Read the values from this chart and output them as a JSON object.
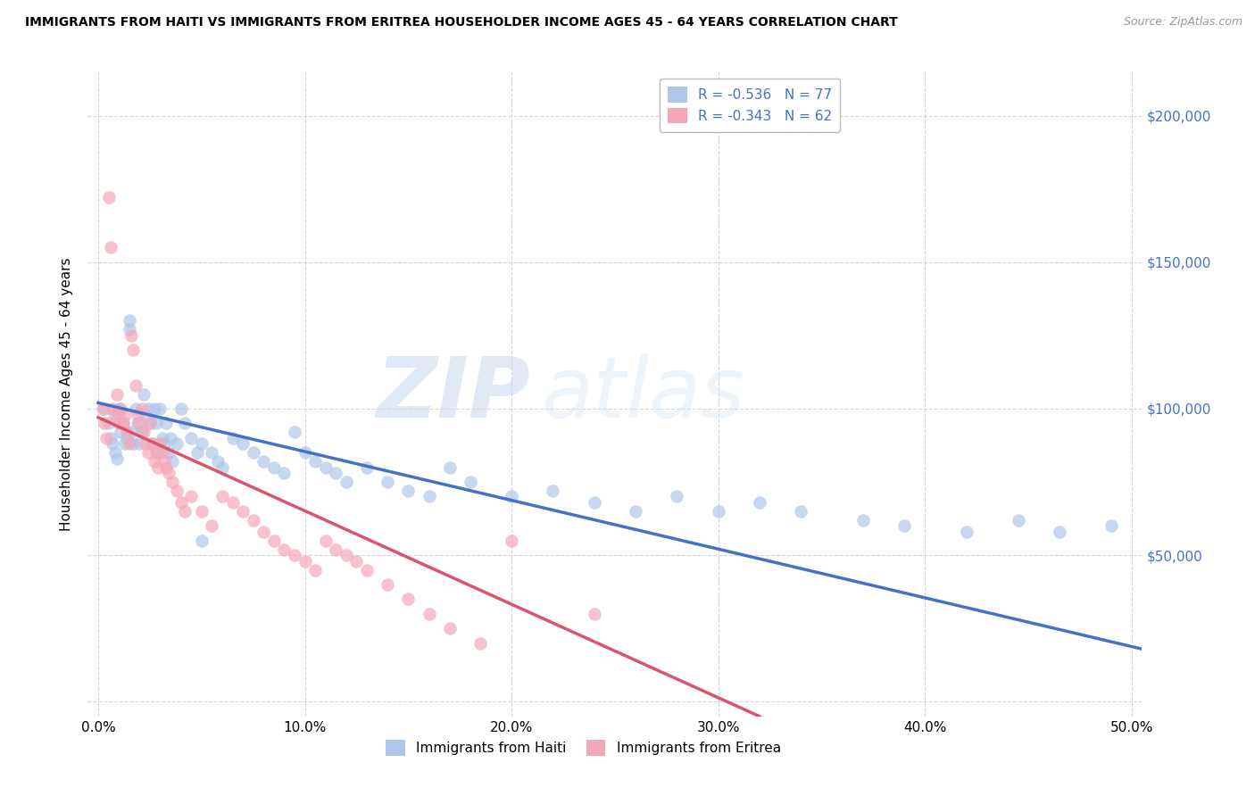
{
  "title": "IMMIGRANTS FROM HAITI VS IMMIGRANTS FROM ERITREA HOUSEHOLDER INCOME AGES 45 - 64 YEARS CORRELATION CHART",
  "source": "Source: ZipAtlas.com",
  "ylabel": "Householder Income Ages 45 - 64 years",
  "xlim": [
    -0.005,
    0.505
  ],
  "ylim": [
    -5000,
    215000
  ],
  "xtick_labels": [
    "0.0%",
    "10.0%",
    "20.0%",
    "30.0%",
    "40.0%",
    "50.0%"
  ],
  "xtick_vals": [
    0.0,
    0.1,
    0.2,
    0.3,
    0.4,
    0.5
  ],
  "ytick_vals": [
    0,
    50000,
    100000,
    150000,
    200000
  ],
  "ytick_labels_right": [
    "",
    "$50,000",
    "$100,000",
    "$150,000",
    "$200,000"
  ],
  "haiti_color": "#aec6e8",
  "eritrea_color": "#f4a7b9",
  "haiti_line_color": "#4472c4",
  "eritrea_line_color": "#d9546e",
  "haiti_R": -0.536,
  "haiti_N": 77,
  "eritrea_R": -0.343,
  "eritrea_N": 62,
  "legend_label_haiti": "Immigrants from Haiti",
  "legend_label_eritrea": "Immigrants from Eritrea",
  "watermark_zip": "ZIP",
  "watermark_atlas": "atlas",
  "grid_color": "#cccccc",
  "haiti_line_x0": 0.0,
  "haiti_line_y0": 102000,
  "haiti_line_x1": 0.505,
  "haiti_line_y1": 18000,
  "eritrea_line_x0": 0.0,
  "eritrea_line_y0": 97000,
  "eritrea_line_x1": 0.32,
  "eritrea_line_y1": -5000,
  "haiti_x": [
    0.003,
    0.005,
    0.006,
    0.007,
    0.008,
    0.009,
    0.01,
    0.01,
    0.011,
    0.012,
    0.013,
    0.014,
    0.015,
    0.015,
    0.016,
    0.017,
    0.018,
    0.019,
    0.02,
    0.021,
    0.022,
    0.023,
    0.024,
    0.025,
    0.026,
    0.027,
    0.028,
    0.029,
    0.03,
    0.031,
    0.032,
    0.033,
    0.034,
    0.035,
    0.036,
    0.038,
    0.04,
    0.042,
    0.045,
    0.048,
    0.05,
    0.055,
    0.058,
    0.06,
    0.065,
    0.07,
    0.075,
    0.08,
    0.085,
    0.09,
    0.095,
    0.1,
    0.105,
    0.11,
    0.115,
    0.12,
    0.13,
    0.14,
    0.15,
    0.16,
    0.17,
    0.18,
    0.2,
    0.22,
    0.24,
    0.26,
    0.28,
    0.3,
    0.32,
    0.34,
    0.37,
    0.39,
    0.42,
    0.445,
    0.465,
    0.49,
    0.05
  ],
  "haiti_y": [
    100000,
    95000,
    90000,
    88000,
    85000,
    83000,
    98000,
    100000,
    92000,
    95000,
    88000,
    90000,
    130000,
    127000,
    92000,
    88000,
    100000,
    95000,
    88000,
    92000,
    105000,
    98000,
    100000,
    95000,
    88000,
    100000,
    95000,
    85000,
    100000,
    90000,
    88000,
    95000,
    85000,
    90000,
    82000,
    88000,
    100000,
    95000,
    90000,
    85000,
    88000,
    85000,
    82000,
    80000,
    90000,
    88000,
    85000,
    82000,
    80000,
    78000,
    92000,
    85000,
    82000,
    80000,
    78000,
    75000,
    80000,
    75000,
    72000,
    70000,
    80000,
    75000,
    70000,
    72000,
    68000,
    65000,
    70000,
    65000,
    68000,
    65000,
    62000,
    60000,
    58000,
    62000,
    58000,
    60000,
    55000
  ],
  "eritrea_x": [
    0.002,
    0.003,
    0.004,
    0.005,
    0.006,
    0.007,
    0.008,
    0.009,
    0.01,
    0.011,
    0.012,
    0.013,
    0.014,
    0.015,
    0.016,
    0.017,
    0.018,
    0.019,
    0.02,
    0.021,
    0.022,
    0.023,
    0.024,
    0.025,
    0.026,
    0.027,
    0.028,
    0.029,
    0.03,
    0.031,
    0.032,
    0.033,
    0.034,
    0.036,
    0.038,
    0.04,
    0.042,
    0.045,
    0.05,
    0.055,
    0.06,
    0.065,
    0.07,
    0.075,
    0.08,
    0.085,
    0.09,
    0.095,
    0.1,
    0.105,
    0.11,
    0.115,
    0.12,
    0.125,
    0.13,
    0.14,
    0.15,
    0.16,
    0.17,
    0.185,
    0.2,
    0.24
  ],
  "eritrea_y": [
    100000,
    95000,
    90000,
    172000,
    155000,
    100000,
    98000,
    105000,
    95000,
    100000,
    95000,
    98000,
    92000,
    88000,
    125000,
    120000,
    108000,
    98000,
    95000,
    100000,
    92000,
    88000,
    85000,
    95000,
    88000,
    82000,
    85000,
    80000,
    88000,
    85000,
    82000,
    80000,
    78000,
    75000,
    72000,
    68000,
    65000,
    70000,
    65000,
    60000,
    70000,
    68000,
    65000,
    62000,
    58000,
    55000,
    52000,
    50000,
    48000,
    45000,
    55000,
    52000,
    50000,
    48000,
    45000,
    40000,
    35000,
    30000,
    25000,
    20000,
    55000,
    30000
  ]
}
